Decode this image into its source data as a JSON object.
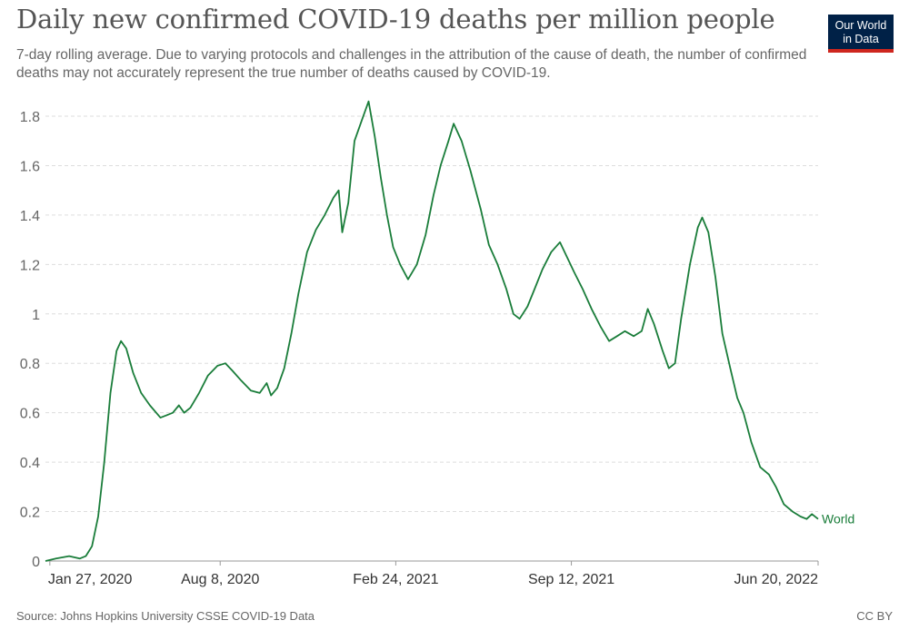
{
  "header": {
    "title": "Daily new confirmed COVID-19 deaths per million people",
    "subtitle": "7-day rolling average. Due to varying protocols and challenges in the attribution of the cause of death, the number of confirmed deaths may not accurately represent the true number of deaths caused by COVID-19.",
    "logo_line1": "Our World",
    "logo_line2": "in Data"
  },
  "footer": {
    "source": "Source: Johns Hopkins University CSSE COVID-19 Data",
    "license": "CC BY"
  },
  "colors": {
    "line": "#1a7d3a",
    "grid": "#dddddd",
    "logo_bg": "#002147",
    "logo_accent": "#ce261e"
  },
  "chart_data": {
    "type": "line",
    "title": "Daily new confirmed COVID-19 deaths per million people",
    "ylim": [
      0,
      1.8
    ],
    "yticks": [
      0,
      0.2,
      0.4,
      0.6,
      0.8,
      1,
      1.2,
      1.4,
      1.6,
      1.8
    ],
    "ytick_labels": [
      "0",
      "0.2",
      "0.4",
      "0.6",
      "0.8",
      "1",
      "1.2",
      "1.4",
      "1.6",
      "1.8"
    ],
    "xlim": [
      "2020-01-22",
      "2022-06-20"
    ],
    "xticks": [
      "2020-01-27",
      "2020-08-08",
      "2021-02-24",
      "2021-09-12",
      "2022-06-20"
    ],
    "xtick_labels": [
      "Jan 27, 2020",
      "Aug 8, 2020",
      "Feb 24, 2021",
      "Sep 12, 2021",
      "Jun 20, 2022"
    ],
    "grid": true,
    "legend": "inline label at line end",
    "series": [
      {
        "name": "World",
        "points": [
          [
            "2020-01-22",
            0.0
          ],
          [
            "2020-02-03",
            0.01
          ],
          [
            "2020-02-18",
            0.02
          ],
          [
            "2020-03-01",
            0.01
          ],
          [
            "2020-03-08",
            0.02
          ],
          [
            "2020-03-15",
            0.06
          ],
          [
            "2020-03-22",
            0.18
          ],
          [
            "2020-03-29",
            0.4
          ],
          [
            "2020-04-05",
            0.68
          ],
          [
            "2020-04-12",
            0.85
          ],
          [
            "2020-04-17",
            0.89
          ],
          [
            "2020-04-23",
            0.86
          ],
          [
            "2020-05-01",
            0.76
          ],
          [
            "2020-05-10",
            0.68
          ],
          [
            "2020-05-20",
            0.63
          ],
          [
            "2020-06-01",
            0.58
          ],
          [
            "2020-06-08",
            0.59
          ],
          [
            "2020-06-15",
            0.6
          ],
          [
            "2020-06-22",
            0.63
          ],
          [
            "2020-06-28",
            0.6
          ],
          [
            "2020-07-05",
            0.62
          ],
          [
            "2020-07-15",
            0.68
          ],
          [
            "2020-07-25",
            0.75
          ],
          [
            "2020-08-05",
            0.79
          ],
          [
            "2020-08-14",
            0.8
          ],
          [
            "2020-08-22",
            0.77
          ],
          [
            "2020-09-01",
            0.73
          ],
          [
            "2020-09-12",
            0.69
          ],
          [
            "2020-09-22",
            0.68
          ],
          [
            "2020-09-30",
            0.72
          ],
          [
            "2020-10-05",
            0.67
          ],
          [
            "2020-10-12",
            0.7
          ],
          [
            "2020-10-20",
            0.78
          ],
          [
            "2020-10-28",
            0.92
          ],
          [
            "2020-11-05",
            1.08
          ],
          [
            "2020-11-15",
            1.25
          ],
          [
            "2020-11-25",
            1.34
          ],
          [
            "2020-12-05",
            1.4
          ],
          [
            "2020-12-15",
            1.47
          ],
          [
            "2020-12-21",
            1.5
          ],
          [
            "2020-12-25",
            1.33
          ],
          [
            "2021-01-01",
            1.45
          ],
          [
            "2021-01-08",
            1.7
          ],
          [
            "2021-01-16",
            1.78
          ],
          [
            "2021-01-24",
            1.86
          ],
          [
            "2021-01-31",
            1.72
          ],
          [
            "2021-02-07",
            1.55
          ],
          [
            "2021-02-14",
            1.4
          ],
          [
            "2021-02-21",
            1.27
          ],
          [
            "2021-03-01",
            1.2
          ],
          [
            "2021-03-10",
            1.14
          ],
          [
            "2021-03-20",
            1.2
          ],
          [
            "2021-03-30",
            1.32
          ],
          [
            "2021-04-08",
            1.48
          ],
          [
            "2021-04-16",
            1.6
          ],
          [
            "2021-04-25",
            1.7
          ],
          [
            "2021-05-01",
            1.77
          ],
          [
            "2021-05-10",
            1.7
          ],
          [
            "2021-05-20",
            1.58
          ],
          [
            "2021-06-01",
            1.42
          ],
          [
            "2021-06-10",
            1.28
          ],
          [
            "2021-06-20",
            1.2
          ],
          [
            "2021-06-30",
            1.1
          ],
          [
            "2021-07-08",
            1.0
          ],
          [
            "2021-07-15",
            0.98
          ],
          [
            "2021-07-24",
            1.03
          ],
          [
            "2021-08-01",
            1.1
          ],
          [
            "2021-08-10",
            1.18
          ],
          [
            "2021-08-20",
            1.25
          ],
          [
            "2021-08-30",
            1.29
          ],
          [
            "2021-09-07",
            1.23
          ],
          [
            "2021-09-15",
            1.17
          ],
          [
            "2021-09-25",
            1.1
          ],
          [
            "2021-10-05",
            1.02
          ],
          [
            "2021-10-15",
            0.95
          ],
          [
            "2021-10-25",
            0.89
          ],
          [
            "2021-11-03",
            0.91
          ],
          [
            "2021-11-12",
            0.93
          ],
          [
            "2021-11-22",
            0.91
          ],
          [
            "2021-12-01",
            0.93
          ],
          [
            "2021-12-08",
            1.02
          ],
          [
            "2021-12-15",
            0.96
          ],
          [
            "2021-12-25",
            0.85
          ],
          [
            "2022-01-01",
            0.78
          ],
          [
            "2022-01-08",
            0.8
          ],
          [
            "2022-01-15",
            0.98
          ],
          [
            "2022-01-25",
            1.2
          ],
          [
            "2022-02-03",
            1.35
          ],
          [
            "2022-02-08",
            1.39
          ],
          [
            "2022-02-15",
            1.33
          ],
          [
            "2022-02-23",
            1.15
          ],
          [
            "2022-03-03",
            0.92
          ],
          [
            "2022-03-12",
            0.78
          ],
          [
            "2022-03-20",
            0.66
          ],
          [
            "2022-03-27",
            0.6
          ],
          [
            "2022-04-05",
            0.48
          ],
          [
            "2022-04-15",
            0.38
          ],
          [
            "2022-04-25",
            0.35
          ],
          [
            "2022-05-03",
            0.3
          ],
          [
            "2022-05-12",
            0.23
          ],
          [
            "2022-05-22",
            0.2
          ],
          [
            "2022-05-31",
            0.18
          ],
          [
            "2022-06-07",
            0.17
          ],
          [
            "2022-06-13",
            0.19
          ],
          [
            "2022-06-20",
            0.17
          ]
        ]
      }
    ]
  }
}
